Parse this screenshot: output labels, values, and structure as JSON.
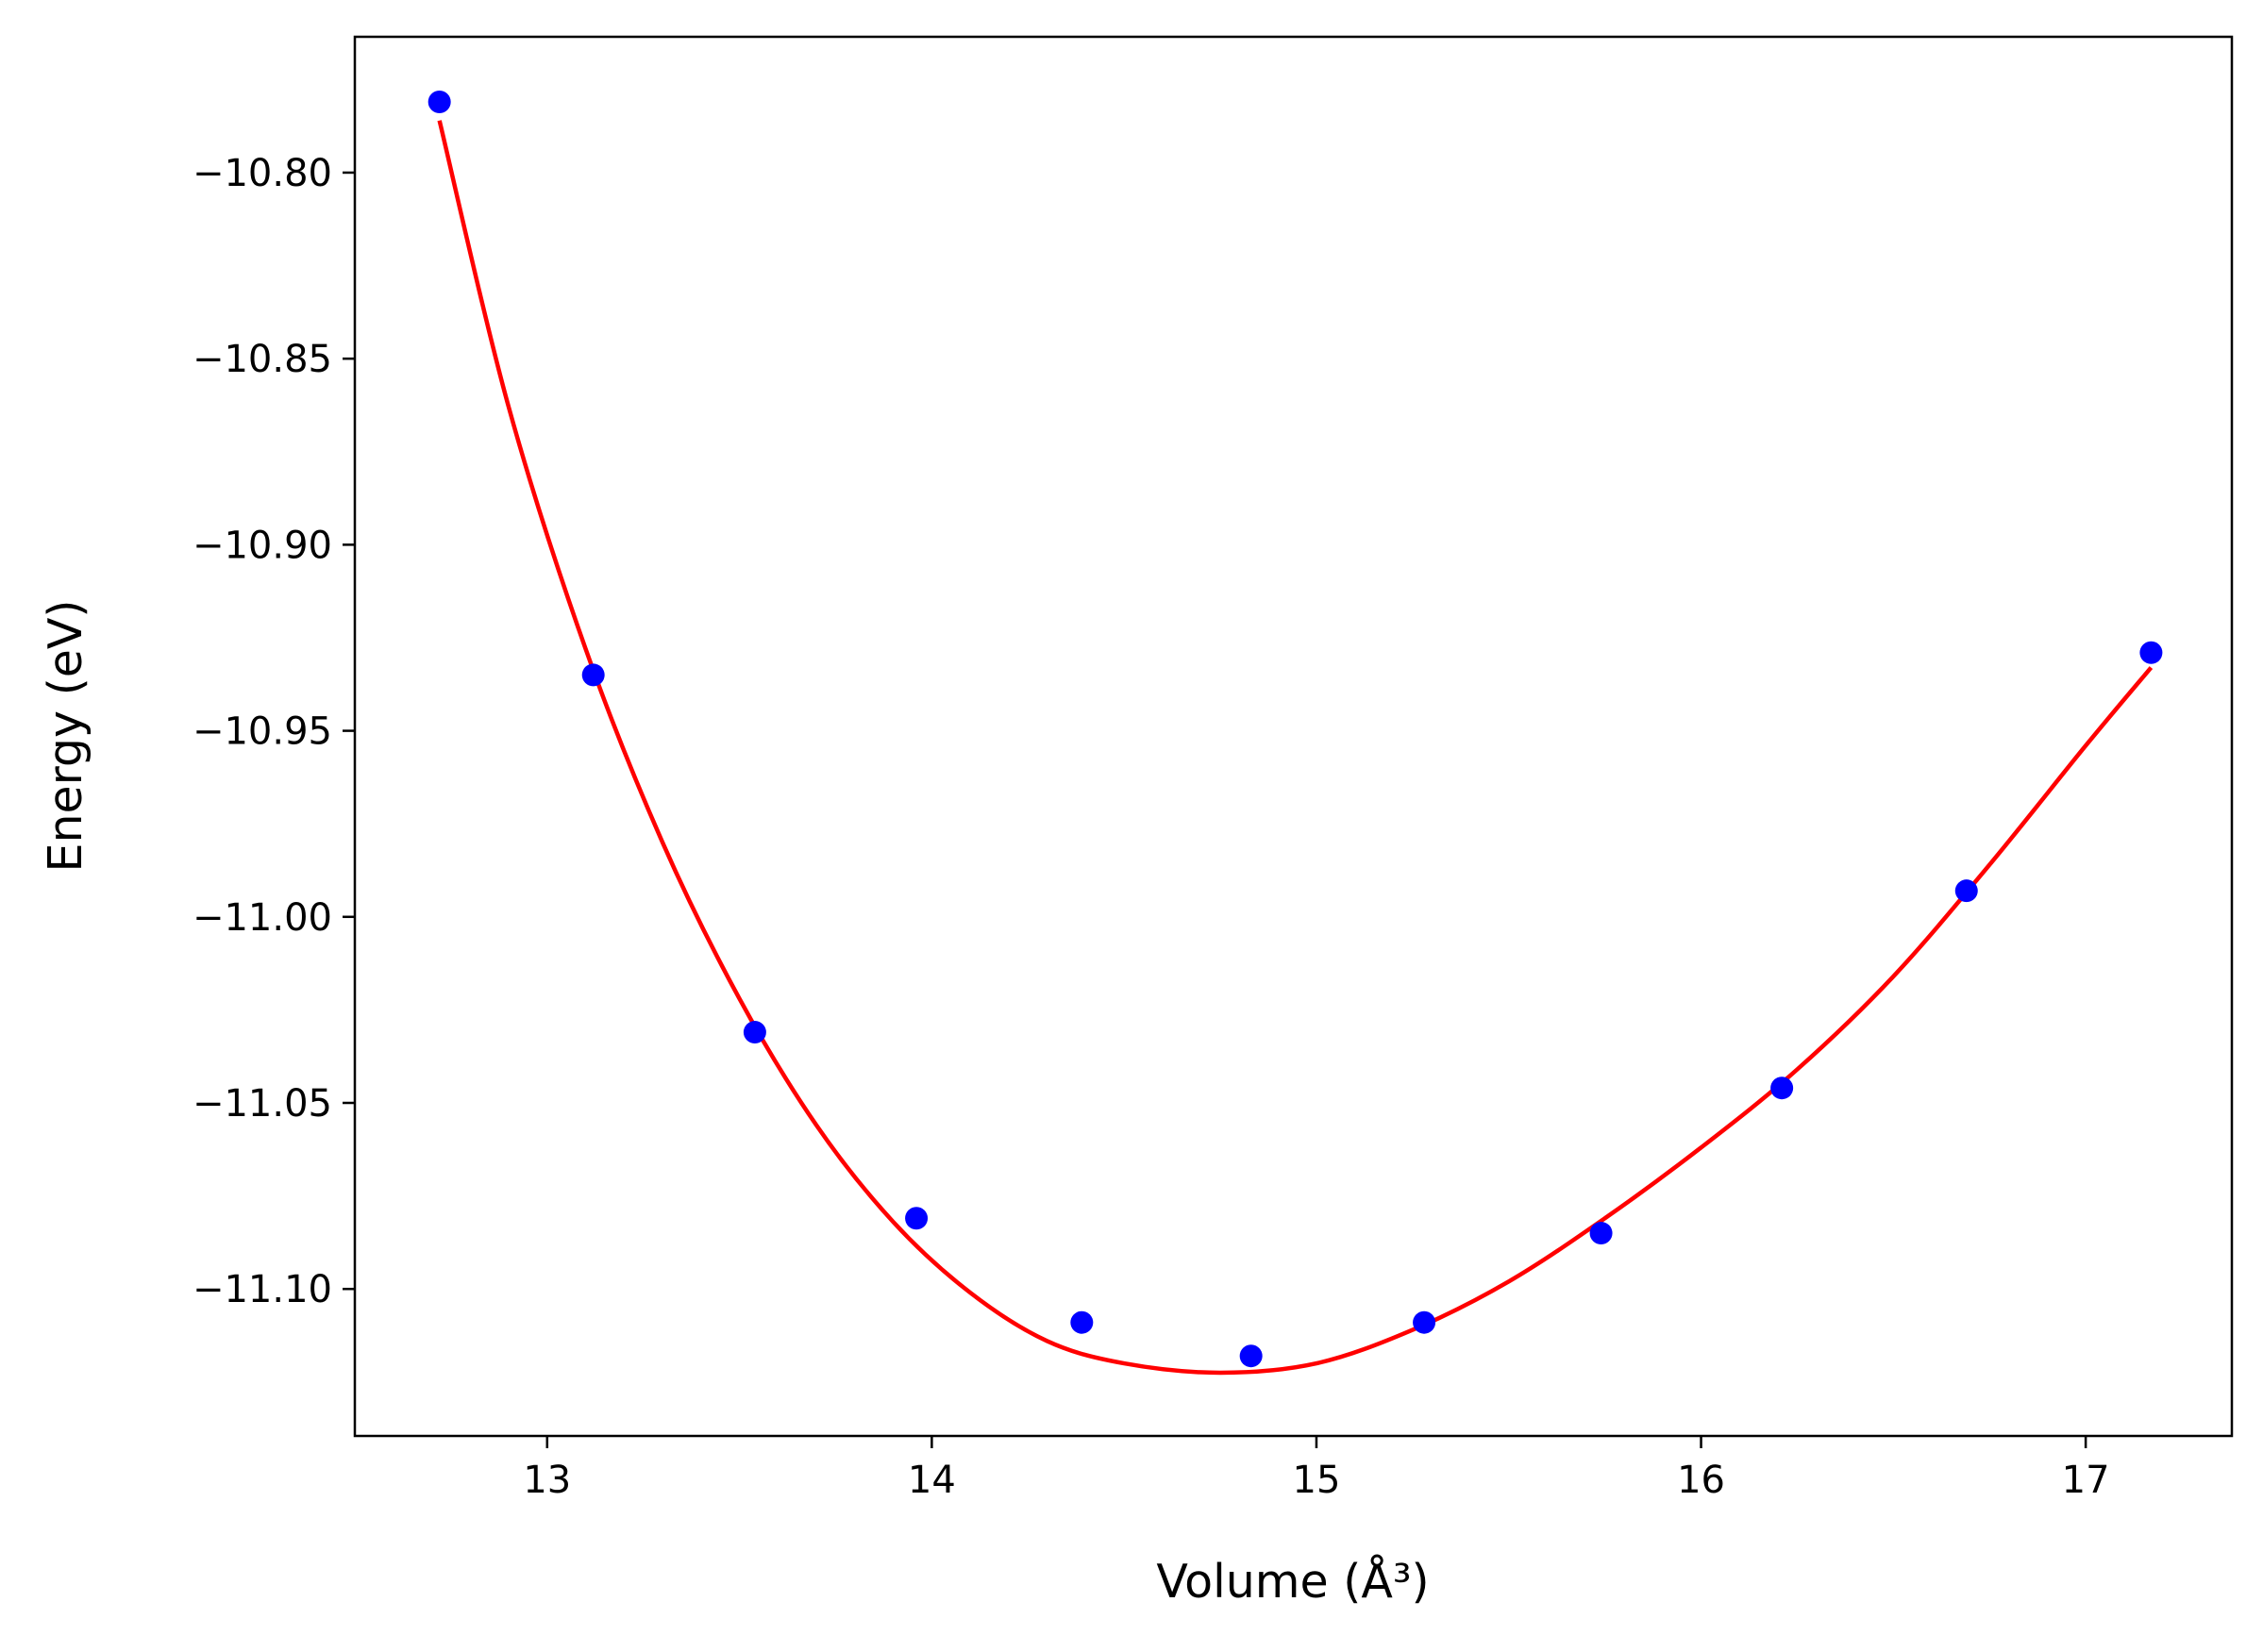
{
  "chart_data": {
    "type": "scatter",
    "title": "",
    "xlabel": "Volume (Å³)",
    "ylabel": "Energy (eV)",
    "xlim": [
      12.5,
      17.38
    ],
    "ylim": [
      -11.1395,
      -10.7635
    ],
    "x_ticks": [
      13,
      14,
      15,
      16,
      17
    ],
    "x_tick_labels": [
      "13",
      "14",
      "15",
      "16",
      "17"
    ],
    "y_ticks": [
      -10.8,
      -10.85,
      -10.9,
      -10.95,
      -11.0,
      -11.05,
      -11.1
    ],
    "y_tick_labels": [
      "−10.80",
      "−10.85",
      "−10.90",
      "−10.95",
      "−11.00",
      "−11.05",
      "−11.10"
    ],
    "grid": false,
    "legend": "none",
    "series": [
      {
        "kind": "scatter",
        "color": "#0000ff",
        "x": [
          12.72,
          13.12,
          13.54,
          13.96,
          14.39,
          14.83,
          15.28,
          15.74,
          16.21,
          16.69,
          17.17
        ],
        "y": [
          -10.781,
          -10.935,
          -11.031,
          -11.081,
          -11.109,
          -11.118,
          -11.109,
          -11.085,
          -11.046,
          -10.993,
          -10.929
        ]
      },
      {
        "kind": "line",
        "color": "#ff0000",
        "x": [
          12.72,
          12.9,
          13.1,
          13.3,
          13.5,
          13.7,
          13.9,
          14.1,
          14.3,
          14.5,
          14.75,
          15.0,
          15.25,
          15.5,
          15.75,
          16.0,
          16.25,
          16.5,
          16.75,
          17.0,
          17.17
        ],
        "y": [
          -10.786,
          -10.863,
          -10.928,
          -10.98,
          -11.022,
          -11.056,
          -11.082,
          -11.101,
          -11.114,
          -11.12,
          -11.1225,
          -11.12,
          -11.111,
          -11.098,
          -11.081,
          -11.062,
          -11.041,
          -11.016,
          -10.986,
          -10.954,
          -10.933
        ]
      }
    ]
  }
}
